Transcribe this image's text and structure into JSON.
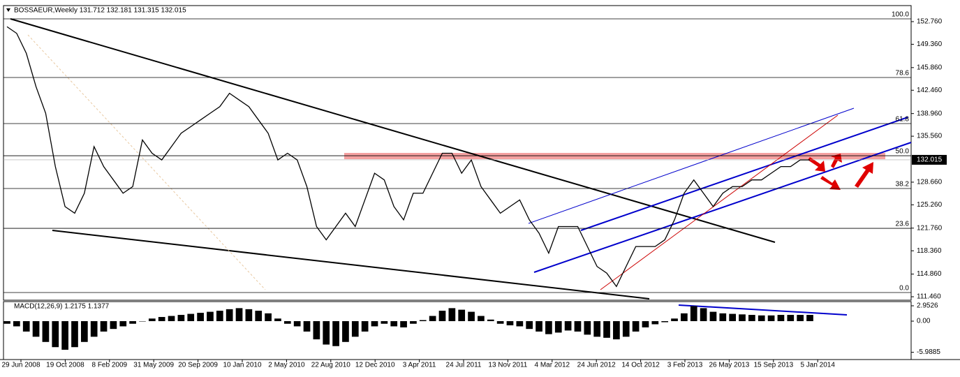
{
  "chart_data": [
    {
      "type": "line",
      "title": "BOSSAEUR,Weekly  131.712 132.181 131.315 132.015",
      "color": "#000000",
      "values": [
        152,
        151,
        148,
        143,
        139,
        131,
        125,
        124,
        127,
        134,
        131,
        129,
        127,
        128,
        135,
        133,
        132,
        134,
        136,
        137,
        138,
        139,
        140,
        142,
        141,
        140,
        138,
        136,
        132,
        133,
        132,
        128,
        122,
        120,
        122,
        124,
        122,
        126,
        130,
        129,
        125,
        123,
        127,
        127,
        130,
        133,
        133,
        130,
        132,
        128,
        126,
        124,
        125,
        126,
        123,
        121,
        118,
        122,
        122,
        122,
        119,
        116,
        115,
        113,
        116,
        119,
        119,
        119,
        120,
        123,
        127,
        129,
        127,
        125,
        127,
        128,
        128,
        129,
        129,
        130,
        131,
        131,
        132,
        132
      ],
      "ylim": [
        111.15,
        154.54
      ],
      "yticks": [
        {
          "value": 152.76,
          "label": "152.760"
        },
        {
          "value": 149.36,
          "label": "149.360"
        },
        {
          "value": 145.86,
          "label": "145.860"
        },
        {
          "value": 142.46,
          "label": "142.460"
        },
        {
          "value": 138.96,
          "label": "138.960"
        },
        {
          "value": 135.56,
          "label": "135.560"
        },
        {
          "value": 128.66,
          "label": "128.660"
        },
        {
          "value": 125.26,
          "label": "125.260"
        },
        {
          "value": 121.76,
          "label": "121.760"
        },
        {
          "value": 118.36,
          "label": "118.360"
        },
        {
          "value": 114.86,
          "label": "114.860"
        },
        {
          "value": 111.46,
          "label": "111.460"
        }
      ],
      "current_price": 132.015,
      "fib_levels": [
        {
          "label": "100.0",
          "value": 153.18
        },
        {
          "label": "78.6",
          "value": 144.37
        },
        {
          "label": "61.8",
          "value": 137.46
        },
        {
          "label": "50.0",
          "value": 132.63
        },
        {
          "label": "38.2",
          "value": 127.71
        },
        {
          "label": "23.6",
          "value": 121.73
        },
        {
          "label": "0.0",
          "value": 112.09
        }
      ],
      "xticks": [
        "29 Jun 2008",
        "19 Oct 2008",
        "8 Feb 2009",
        "31 May 2009",
        "20 Sep 2009",
        "10 Jan 2010",
        "2 May 2010",
        "22 Aug 2010",
        "12 Dec 2010",
        "3 Apr 2011",
        "24 Jul 2011",
        "13 Nov 2011",
        "4 Mar 2012",
        "24 Jun 2012",
        "14 Oct 2012",
        "3 Feb 2013",
        "26 May 2013",
        "15 Sep 2013",
        "5 Jan 2014"
      ]
    },
    {
      "type": "bar",
      "title": "MACD(12,26,9) 1.2175 1.1377",
      "color": "#000000",
      "values": [
        -0.5,
        -1,
        -2,
        -3,
        -4,
        -5,
        -5.5,
        -5,
        -4,
        -3,
        -2,
        -1.5,
        -1,
        -0.5,
        0,
        0.5,
        0.8,
        1,
        1.2,
        1.4,
        1.6,
        1.8,
        2,
        2.3,
        2.5,
        2.3,
        2,
        1.5,
        0.5,
        -0.5,
        -1,
        -2,
        -3.5,
        -4.5,
        -4.8,
        -4,
        -3,
        -2,
        -1,
        -0.5,
        -1,
        -1.2,
        -0.5,
        0.2,
        1,
        2,
        2.5,
        2.2,
        1.8,
        1,
        0.3,
        -0.5,
        -0.8,
        -1,
        -1.5,
        -2,
        -2.5,
        -2.2,
        -1.8,
        -2,
        -2.6,
        -3,
        -3.2,
        -3.5,
        -3,
        -2,
        -1.2,
        -0.6,
        -0.2,
        0.5,
        1.5,
        2.9,
        2.5,
        1.8,
        1.5,
        1.4,
        1.3,
        1.2,
        1.1,
        1.1,
        1.2,
        1.2,
        1.2,
        1.2
      ],
      "ylim": [
        -7.25,
        3.49
      ],
      "yticks": [
        2.9526,
        {
          "value": 0,
          "label": "0.00"
        },
        -5.9885
      ]
    }
  ]
}
